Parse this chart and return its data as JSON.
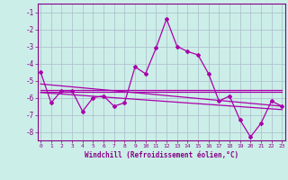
{
  "xlabel": "Windchill (Refroidissement éolien,°C)",
  "x": [
    0,
    1,
    2,
    3,
    4,
    5,
    6,
    7,
    8,
    9,
    10,
    11,
    12,
    13,
    14,
    15,
    16,
    17,
    18,
    19,
    20,
    21,
    22,
    23
  ],
  "line1": [
    -4.5,
    -6.3,
    -5.6,
    -5.6,
    -6.8,
    -6.0,
    -5.9,
    -6.5,
    -6.3,
    -4.2,
    -4.6,
    -3.1,
    -1.4,
    -3.0,
    -3.3,
    -3.5,
    -4.6,
    -6.2,
    -5.9,
    -7.3,
    -8.3,
    -7.5,
    -6.2,
    -6.5
  ],
  "line2_x": [
    0,
    23
  ],
  "line2_y": [
    -5.55,
    -5.55
  ],
  "line3_x": [
    0,
    23
  ],
  "line3_y": [
    -5.65,
    -5.65
  ],
  "line4_x": [
    0,
    23
  ],
  "line4_y": [
    -5.2,
    -6.5
  ],
  "line5_x": [
    0,
    23
  ],
  "line5_y": [
    -5.7,
    -6.7
  ],
  "line_color": "#aa00aa",
  "bg_color": "#cceee8",
  "grid_color": "#aabbcc",
  "ylim": [
    -8.5,
    -0.5
  ],
  "xlim": [
    -0.3,
    23.3
  ],
  "yticks": [
    -1,
    -2,
    -3,
    -4,
    -5,
    -6,
    -7,
    -8
  ],
  "xticks": [
    0,
    1,
    2,
    3,
    4,
    5,
    6,
    7,
    8,
    9,
    10,
    11,
    12,
    13,
    14,
    15,
    16,
    17,
    18,
    19,
    20,
    21,
    22,
    23
  ]
}
